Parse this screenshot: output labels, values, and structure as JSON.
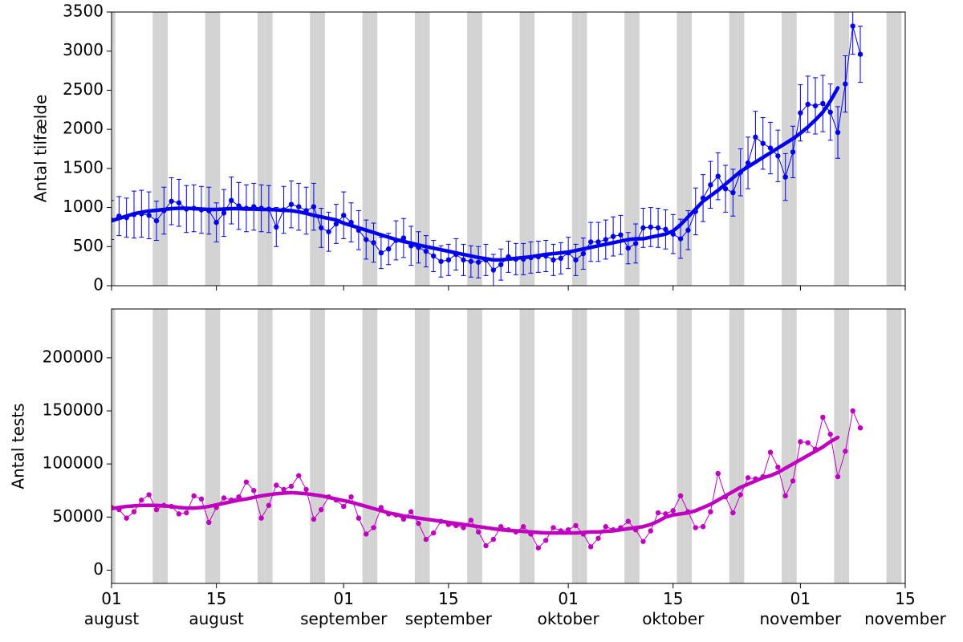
{
  "chart_data": [
    {
      "type": "line",
      "ylabel": "Antal tilfælde",
      "xlim": [
        "08-01",
        "11-15"
      ],
      "ylim": [
        0,
        3500
      ],
      "yticks": [
        0,
        500,
        1000,
        1500,
        2000,
        2500,
        3000,
        3500
      ],
      "shaded_days": [
        "08-01",
        "08-07",
        "08-08",
        "08-14",
        "08-15",
        "08-21",
        "08-22",
        "08-28",
        "08-29",
        "09-04",
        "09-05",
        "09-11",
        "09-12",
        "09-18",
        "09-19",
        "09-25",
        "09-26",
        "10-02",
        "10-03",
        "10-09",
        "10-10",
        "10-16",
        "10-17",
        "10-23",
        "10-24",
        "10-30",
        "10-31",
        "11-06",
        "11-07",
        "11-13",
        "11-14"
      ],
      "shade_color": "#d3d3d3",
      "x": [
        "08-01",
        "08-02",
        "08-03",
        "08-04",
        "08-05",
        "08-06",
        "08-07",
        "08-08",
        "08-09",
        "08-10",
        "08-11",
        "08-12",
        "08-13",
        "08-14",
        "08-15",
        "08-16",
        "08-17",
        "08-18",
        "08-19",
        "08-20",
        "08-21",
        "08-22",
        "08-23",
        "08-24",
        "08-25",
        "08-26",
        "08-27",
        "08-28",
        "08-29",
        "08-30",
        "08-31",
        "09-01",
        "09-02",
        "09-03",
        "09-04",
        "09-05",
        "09-06",
        "09-07",
        "09-08",
        "09-09",
        "09-10",
        "09-11",
        "09-12",
        "09-13",
        "09-14",
        "09-15",
        "09-16",
        "09-17",
        "09-18",
        "09-19",
        "09-20",
        "09-21",
        "09-22",
        "09-23",
        "09-24",
        "09-25",
        "09-26",
        "09-27",
        "09-28",
        "09-29",
        "09-30",
        "10-01",
        "10-02",
        "10-03",
        "10-04",
        "10-05",
        "10-06",
        "10-07",
        "10-08",
        "10-09",
        "10-10",
        "10-11",
        "10-12",
        "10-13",
        "10-14",
        "10-15",
        "10-16",
        "10-17",
        "10-18",
        "10-19",
        "10-20",
        "10-21",
        "10-22",
        "10-23",
        "10-24",
        "10-25",
        "10-26",
        "10-27",
        "10-28",
        "10-29",
        "10-30",
        "10-31",
        "11-01",
        "11-02",
        "11-03",
        "11-04",
        "11-05",
        "11-06",
        "11-07",
        "11-08",
        "11-09"
      ],
      "series": [
        {
          "color": "#0000ee",
          "style": "points",
          "values": [
            840,
            890,
            870,
            910,
            920,
            900,
            830,
            960,
            1080,
            1060,
            980,
            990,
            970,
            960,
            810,
            930,
            1090,
            1020,
            990,
            1010,
            990,
            980,
            750,
            970,
            1040,
            1010,
            960,
            1010,
            740,
            690,
            790,
            900,
            810,
            710,
            590,
            550,
            420,
            470,
            580,
            610,
            510,
            490,
            440,
            380,
            310,
            330,
            400,
            330,
            310,
            300,
            330,
            200,
            270,
            370,
            340,
            340,
            360,
            370,
            380,
            330,
            350,
            420,
            330,
            410,
            560,
            560,
            590,
            630,
            650,
            480,
            540,
            740,
            750,
            740,
            720,
            660,
            600,
            710,
            950,
            1120,
            1290,
            1400,
            1240,
            1190,
            1450,
            1570,
            1900,
            1820,
            1760,
            1660,
            1390,
            1710,
            2210,
            2320,
            2300,
            2330,
            2220,
            1960,
            2580,
            3320,
            2960
          ],
          "errors": [
            250,
            250,
            250,
            300,
            300,
            300,
            250,
            300,
            300,
            300,
            300,
            300,
            300,
            300,
            250,
            300,
            300,
            300,
            300,
            300,
            300,
            300,
            250,
            300,
            300,
            300,
            300,
            300,
            250,
            250,
            250,
            300,
            250,
            250,
            250,
            250,
            200,
            200,
            250,
            250,
            250,
            200,
            200,
            200,
            200,
            200,
            200,
            200,
            200,
            200,
            200,
            200,
            200,
            200,
            200,
            200,
            200,
            200,
            200,
            200,
            200,
            200,
            200,
            200,
            250,
            250,
            250,
            250,
            250,
            200,
            250,
            250,
            250,
            250,
            250,
            250,
            250,
            250,
            300,
            300,
            300,
            300,
            300,
            300,
            300,
            330,
            330,
            330,
            330,
            330,
            300,
            330,
            360,
            360,
            360,
            360,
            360,
            330,
            360,
            360,
            360
          ]
        },
        {
          "color": "#0000ee",
          "style": "smooth",
          "values": [
            830,
            860,
            890,
            920,
            940,
            955,
            965,
            975,
            985,
            990,
            990,
            985,
            980,
            975,
            975,
            980,
            985,
            985,
            980,
            980,
            975,
            975,
            970,
            965,
            960,
            945,
            925,
            900,
            880,
            860,
            840,
            800,
            770,
            740,
            710,
            680,
            650,
            620,
            590,
            565,
            545,
            520,
            500,
            480,
            460,
            440,
            420,
            400,
            380,
            360,
            345,
            330,
            330,
            340,
            350,
            360,
            370,
            385,
            400,
            410,
            420,
            430,
            450,
            470,
            490,
            510,
            530,
            550,
            570,
            590,
            600,
            600,
            620,
            640,
            660,
            700,
            780,
            880,
            980,
            1080,
            1150,
            1220,
            1300,
            1380,
            1460,
            1520,
            1580,
            1640,
            1700,
            1760,
            1820,
            1880,
            1950,
            2030,
            2120,
            2220,
            2360,
            2530,
            null,
            null,
            null
          ]
        }
      ]
    },
    {
      "type": "line",
      "ylabel": "Antal tests",
      "xlim": [
        "08-01",
        "11-15"
      ],
      "ylim": [
        -12500,
        246000
      ],
      "yticks": [
        0,
        50000,
        100000,
        150000,
        200000
      ],
      "xticks": [
        {
          "value": "08-01",
          "label": "01\naugust"
        },
        {
          "value": "08-15",
          "label": "15\naugust"
        },
        {
          "value": "09-01",
          "label": "01\nseptember"
        },
        {
          "value": "09-15",
          "label": "15\nseptember"
        },
        {
          "value": "10-01",
          "label": "01\noktober"
        },
        {
          "value": "10-15",
          "label": "15\noktober"
        },
        {
          "value": "11-01",
          "label": "01\nnovember"
        },
        {
          "value": "11-15",
          "label": "15\nnovember"
        }
      ],
      "series": [
        {
          "color": "#bf00bf",
          "style": "points",
          "values": [
            59000,
            57000,
            49000,
            55000,
            66000,
            71000,
            57000,
            61000,
            60000,
            53000,
            54000,
            70000,
            67000,
            45000,
            59000,
            68000,
            66000,
            69000,
            83000,
            75000,
            49000,
            61000,
            80000,
            76000,
            79000,
            89000,
            76000,
            48000,
            57000,
            69000,
            66000,
            60000,
            69000,
            49000,
            34000,
            40000,
            59000,
            53000,
            52000,
            48000,
            55000,
            44000,
            29000,
            35000,
            46000,
            43000,
            42000,
            40000,
            47000,
            36000,
            23000,
            29000,
            41000,
            38000,
            36000,
            41000,
            34000,
            21000,
            28000,
            40000,
            37000,
            38000,
            42000,
            34000,
            22000,
            30000,
            41000,
            38000,
            40000,
            46000,
            38000,
            27000,
            37000,
            54000,
            53000,
            56000,
            70000,
            55000,
            40000,
            41000,
            55000,
            91000,
            69000,
            54000,
            71000,
            87000,
            86000,
            88000,
            111000,
            97000,
            70000,
            84000,
            121000,
            120000,
            114000,
            144000,
            128000,
            88000,
            112000,
            150000,
            134000
          ]
        },
        {
          "color": "#bf00bf",
          "style": "smooth",
          "values": [
            58000,
            59000,
            60000,
            60500,
            61000,
            61000,
            61000,
            60500,
            60000,
            59000,
            58500,
            58500,
            59000,
            60000,
            61500,
            63000,
            64500,
            66000,
            67000,
            68500,
            70000,
            71000,
            72000,
            72500,
            73000,
            72500,
            72000,
            71000,
            70000,
            68500,
            67000,
            65500,
            64000,
            62000,
            60000,
            58000,
            56000,
            54000,
            52500,
            51000,
            50000,
            49000,
            48000,
            47000,
            46000,
            45000,
            44000,
            43000,
            42000,
            41000,
            40000,
            39000,
            38000,
            37500,
            37000,
            36500,
            36000,
            35500,
            35000,
            35000,
            35000,
            35000,
            35000,
            35500,
            36000,
            36000,
            36500,
            37000,
            38000,
            39000,
            40000,
            41000,
            43000,
            46000,
            50000,
            52000,
            53000,
            54000,
            56000,
            59000,
            62000,
            66000,
            70000,
            74000,
            78000,
            81000,
            84000,
            87000,
            89000,
            92000,
            96000,
            100000,
            104000,
            108000,
            112000,
            116000,
            121000,
            125000,
            null,
            null,
            null
          ]
        }
      ]
    }
  ]
}
